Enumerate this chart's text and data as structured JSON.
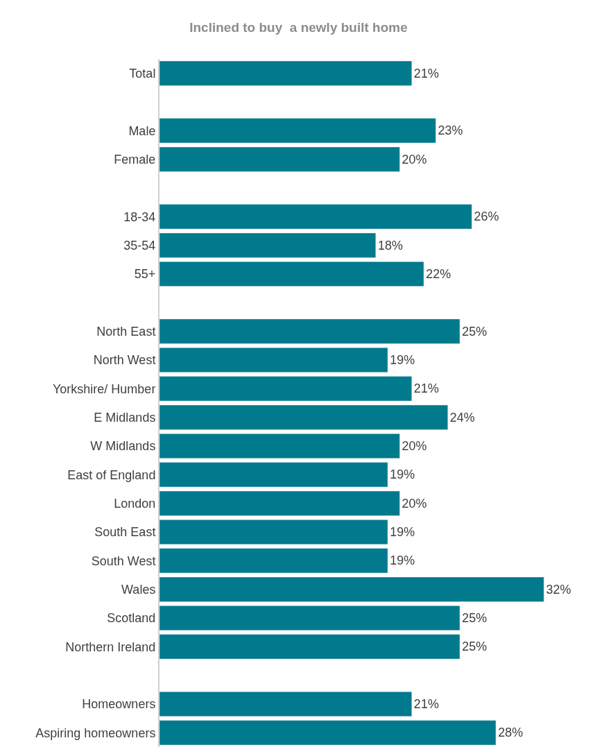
{
  "chart_data": {
    "type": "bar",
    "orientation": "horizontal",
    "title": "Inclined to buy  a newly built home",
    "categories": [
      "Total",
      null,
      "Male",
      "Female",
      null,
      "18-34",
      "35-54",
      "55+",
      null,
      "North East",
      "North West",
      "Yorkshire/ Humber",
      "E Midlands",
      "W Midlands",
      "East of England",
      "London",
      "South East",
      "South West",
      "Wales",
      "Scotland",
      "Northern Ireland",
      null,
      "Homeowners",
      "Aspiring homeowners"
    ],
    "values": [
      21,
      null,
      23,
      20,
      null,
      26,
      18,
      22,
      null,
      25,
      19,
      21,
      24,
      20,
      19,
      20,
      19,
      19,
      32,
      25,
      25,
      null,
      21,
      28
    ],
    "value_labels": [
      "21%",
      null,
      "23%",
      "20%",
      null,
      "26%",
      "18%",
      "22%",
      null,
      "25%",
      "19%",
      "21%",
      "24%",
      "20%",
      "19%",
      "20%",
      "19%",
      "19%",
      "32%",
      "25%",
      "25%",
      null,
      "21%",
      "28%"
    ],
    "color": "#007a8c"
  }
}
